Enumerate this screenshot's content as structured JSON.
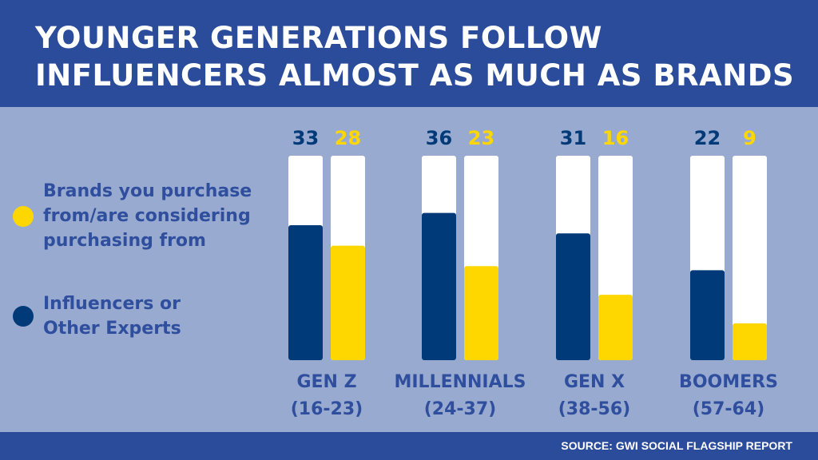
{
  "title": {
    "line1": "YOUNGER GENERATIONS FOLLOW",
    "line2": "INFLUENCERS ALMOST AS MUCH AS BRANDS"
  },
  "legend": [
    {
      "lines": [
        "Brands you purchase",
        "from/are considering",
        "purchasing from"
      ],
      "color": "#ffd700"
    },
    {
      "lines": [
        "Influencers or",
        "Other Experts"
      ],
      "color": "#003a78"
    }
  ],
  "source": "SOURCE: GWI SOCIAL FLAGSHIP REPORT",
  "colors": {
    "influencers": "#003a78",
    "brands": "#ffd700",
    "track": "#ffffff",
    "label": "#2f4f9e"
  },
  "chart_data": {
    "type": "bar",
    "title": "YOUNGER GENERATIONS FOLLOW INFLUENCERS ALMOST AS MUCH AS BRANDS",
    "categories": [
      {
        "name": "GEN Z",
        "range": "(16-23)"
      },
      {
        "name": "MILLENNIALS",
        "range": "(24-37)"
      },
      {
        "name": "GEN X",
        "range": "(38-56)"
      },
      {
        "name": "BOOMERS",
        "range": "(57-64)"
      }
    ],
    "series": [
      {
        "name": "Influencers or Other Experts",
        "values": [
          33,
          36,
          31,
          22
        ]
      },
      {
        "name": "Brands you purchase from/are considering purchasing from",
        "values": [
          28,
          23,
          16,
          9
        ]
      }
    ],
    "ylim": [
      0,
      50
    ],
    "legend_position": "left"
  }
}
